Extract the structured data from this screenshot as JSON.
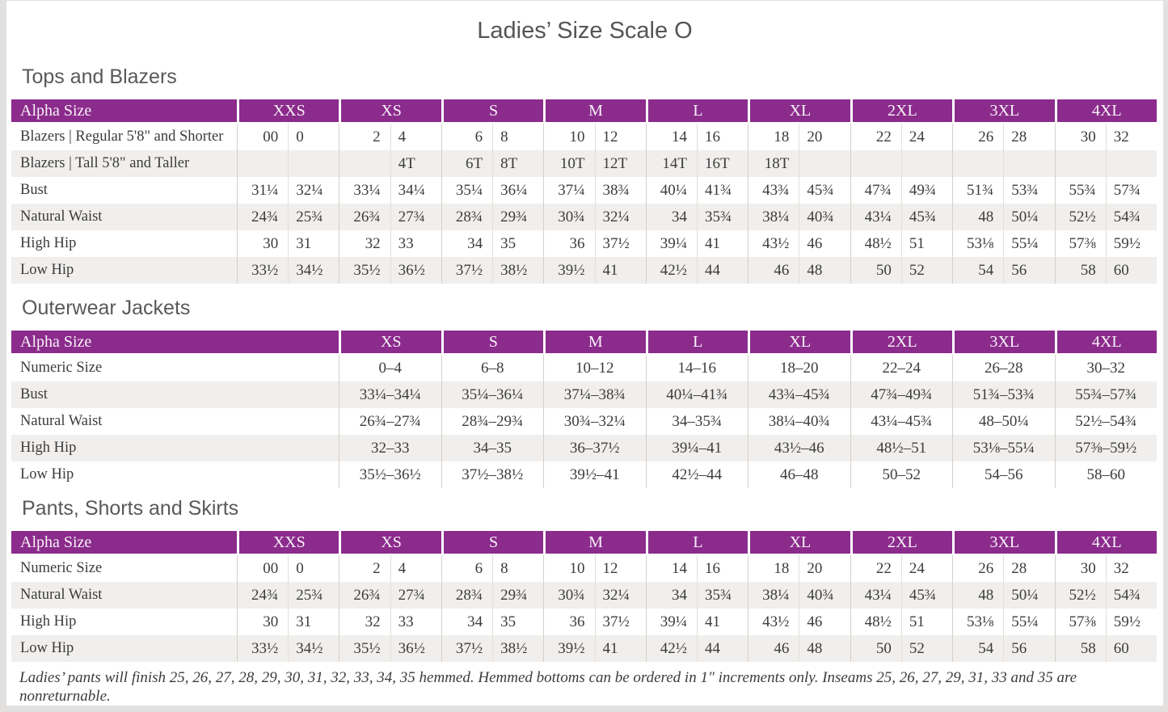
{
  "title": "Ladies’ Size Scale O",
  "colors": {
    "purple": "#8b2b8c",
    "stripe": "#f1efed",
    "ink": "#3c3c3c",
    "muted": "#58595b",
    "frame": "#e2e1e0"
  },
  "sections": [
    {
      "id": "tops-and-blazers",
      "heading": "Tops and Blazers",
      "header_label": "Alpha Size",
      "paired": true,
      "label_col_width": 279,
      "groups": [
        "XXS",
        "XS",
        "S",
        "M",
        "L",
        "XL",
        "2XL",
        "3XL",
        "4XL"
      ],
      "rows": [
        {
          "label": "Blazers  |  Regular 5'8\" and Shorter",
          "cells": [
            "00",
            "0",
            "2",
            "4",
            "6",
            "8",
            "10",
            "12",
            "14",
            "16",
            "18",
            "20",
            "22",
            "24",
            "26",
            "28",
            "30",
            "32"
          ]
        },
        {
          "label": "Blazers  |  Tall 5'8\" and Taller",
          "cells": [
            "",
            "",
            "",
            "4T",
            "6T",
            "8T",
            "10T",
            "12T",
            "14T",
            "16T",
            "18T",
            "",
            "",
            "",
            "",
            "",
            "",
            ""
          ]
        },
        {
          "label": "Bust",
          "cells": [
            "31¼",
            "32¼",
            "33¼",
            "34¼",
            "35¼",
            "36¼",
            "37¼",
            "38¾",
            "40¼",
            "41¾",
            "43¾",
            "45¾",
            "47¾",
            "49¾",
            "51¾",
            "53¾",
            "55¾",
            "57¾"
          ]
        },
        {
          "label": "Natural Waist",
          "cells": [
            "24¾",
            "25¾",
            "26¾",
            "27¾",
            "28¾",
            "29¾",
            "30¾",
            "32¼",
            "34",
            "35¾",
            "38¼",
            "40¾",
            "43¼",
            "45¾",
            "48",
            "50¼",
            "52½",
            "54¾"
          ]
        },
        {
          "label": "High Hip",
          "cells": [
            "30",
            "31",
            "32",
            "33",
            "34",
            "35",
            "36",
            "37½",
            "39¼",
            "41",
            "43½",
            "46",
            "48½",
            "51",
            "53⅛",
            "55¼",
            "57⅜",
            "59½"
          ]
        },
        {
          "label": "Low Hip",
          "cells": [
            "33½",
            "34½",
            "35½",
            "36½",
            "37½",
            "38½",
            "39½",
            "41",
            "42½",
            "44",
            "46",
            "48",
            "50",
            "52",
            "54",
            "56",
            "58",
            "60"
          ]
        }
      ]
    },
    {
      "id": "outerwear-jackets",
      "heading": "Outerwear Jackets",
      "header_label": "Alpha Size",
      "paired": false,
      "label_col_width": 405,
      "groups": [
        "XS",
        "S",
        "M",
        "L",
        "XL",
        "2XL",
        "3XL",
        "4XL"
      ],
      "rows": [
        {
          "label": "Numeric Size",
          "cells": [
            "0–4",
            "6–8",
            "10–12",
            "14–16",
            "18–20",
            "22–24",
            "26–28",
            "30–32"
          ]
        },
        {
          "label": "Bust",
          "cells": [
            "33¼–34¼",
            "35¼–36¼",
            "37¼–38¾",
            "40¼–41¾",
            "43¾–45¾",
            "47¾–49¾",
            "51¾–53¾",
            "55¾–57¾"
          ]
        },
        {
          "label": "Natural Waist",
          "cells": [
            "26¾–27¾",
            "28¾–29¾",
            "30¾–32¼",
            "34–35¾",
            "38¼–40¾",
            "43¼–45¾",
            "48–50¼",
            "52½–54¾"
          ]
        },
        {
          "label": "High Hip",
          "cells": [
            "32–33",
            "34–35",
            "36–37½",
            "39¼–41",
            "43½–46",
            "48½–51",
            "53⅛–55¼",
            "57⅜–59½"
          ]
        },
        {
          "label": "Low Hip",
          "cells": [
            "35½–36½",
            "37½–38½",
            "39½–41",
            "42½–44",
            "46–48",
            "50–52",
            "54–56",
            "58–60"
          ]
        }
      ]
    },
    {
      "id": "pants-shorts-and-skirts",
      "heading": "Pants, Shorts and Skirts",
      "header_label": "Alpha Size",
      "paired": true,
      "label_col_width": 279,
      "groups": [
        "XXS",
        "XS",
        "S",
        "M",
        "L",
        "XL",
        "2XL",
        "3XL",
        "4XL"
      ],
      "rows": [
        {
          "label": "Numeric Size",
          "cells": [
            "00",
            "0",
            "2",
            "4",
            "6",
            "8",
            "10",
            "12",
            "14",
            "16",
            "18",
            "20",
            "22",
            "24",
            "26",
            "28",
            "30",
            "32"
          ]
        },
        {
          "label": "Natural Waist",
          "cells": [
            "24¾",
            "25¾",
            "26¾",
            "27¾",
            "28¾",
            "29¾",
            "30¾",
            "32¼",
            "34",
            "35¾",
            "38¼",
            "40¾",
            "43¼",
            "45¾",
            "48",
            "50¼",
            "52½",
            "54¾"
          ]
        },
        {
          "label": "High Hip",
          "cells": [
            "30",
            "31",
            "32",
            "33",
            "34",
            "35",
            "36",
            "37½",
            "39¼",
            "41",
            "43½",
            "46",
            "48½",
            "51",
            "53⅛",
            "55¼",
            "57⅜",
            "59½"
          ]
        },
        {
          "label": "Low Hip",
          "cells": [
            "33½",
            "34½",
            "35½",
            "36½",
            "37½",
            "38½",
            "39½",
            "41",
            "42½",
            "44",
            "46",
            "48",
            "50",
            "52",
            "54",
            "56",
            "58",
            "60"
          ]
        }
      ]
    }
  ],
  "footnote": "Ladies’ pants will finish 25, 26, 27, 28, 29, 30, 31, 32, 33, 34, 35 hemmed. Hemmed bottoms can be ordered in 1″ increments only. Inseams 25, 26, 27, 29, 31, 33 and 35 are nonreturnable."
}
